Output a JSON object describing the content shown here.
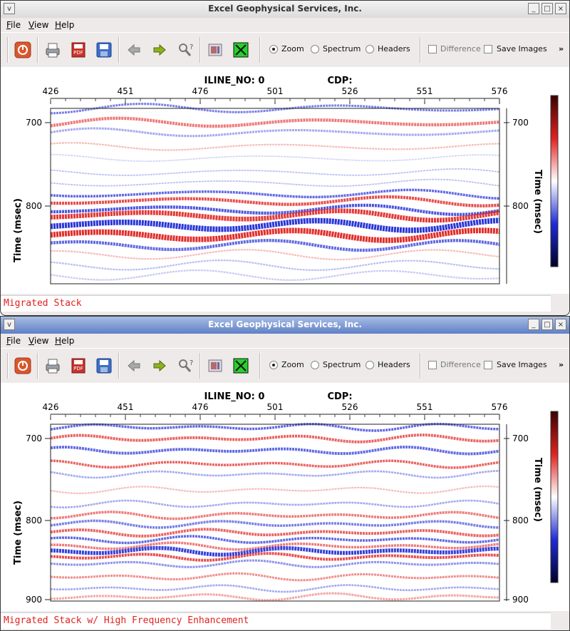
{
  "app_title": "Excel Geophysical Services, Inc.",
  "menu": [
    "File",
    "View",
    "Help"
  ],
  "toolbar": {
    "modes": [
      "Zoom",
      "Spectrum",
      "Headers"
    ],
    "selected_mode": "Zoom",
    "checkboxes": [
      "Difference",
      "Save Images"
    ],
    "overflow": "»"
  },
  "window_buttons": [
    "_",
    "□",
    "×"
  ],
  "icons": [
    "power-icon",
    "printer-icon",
    "pdf-icon",
    "save-disk-icon",
    "back-arrow-icon",
    "forward-arrow-icon",
    "help-icon",
    "image-icon",
    "close-x-icon"
  ],
  "colors": {
    "positive": "#e0221f",
    "negative": "#1f2bd6",
    "caption": "#e0221f",
    "active_title": "#5f80c6"
  },
  "panels": [
    {
      "title": "Excel Geophysical Services, Inc.",
      "header_iline": "ILINE_NO: 0",
      "header_cdp": "CDP:",
      "x_ticks": [
        "426",
        "451",
        "476",
        "501",
        "526",
        "551",
        "576"
      ],
      "y_ticks": [
        "700",
        "800"
      ],
      "ylabel": "Time (msec)",
      "caption": "Migrated Stack"
    },
    {
      "title": "Excel Geophysical Services, Inc.",
      "header_iline": "ILINE_NO: 0",
      "header_cdp": "CDP:",
      "x_ticks": [
        "426",
        "451",
        "476",
        "501",
        "526",
        "551",
        "576"
      ],
      "y_ticks": [
        "700",
        "800",
        "900"
      ],
      "ylabel": "Time (msec)",
      "caption": "Migrated Stack w/ High Frequency Enhancement"
    }
  ]
}
